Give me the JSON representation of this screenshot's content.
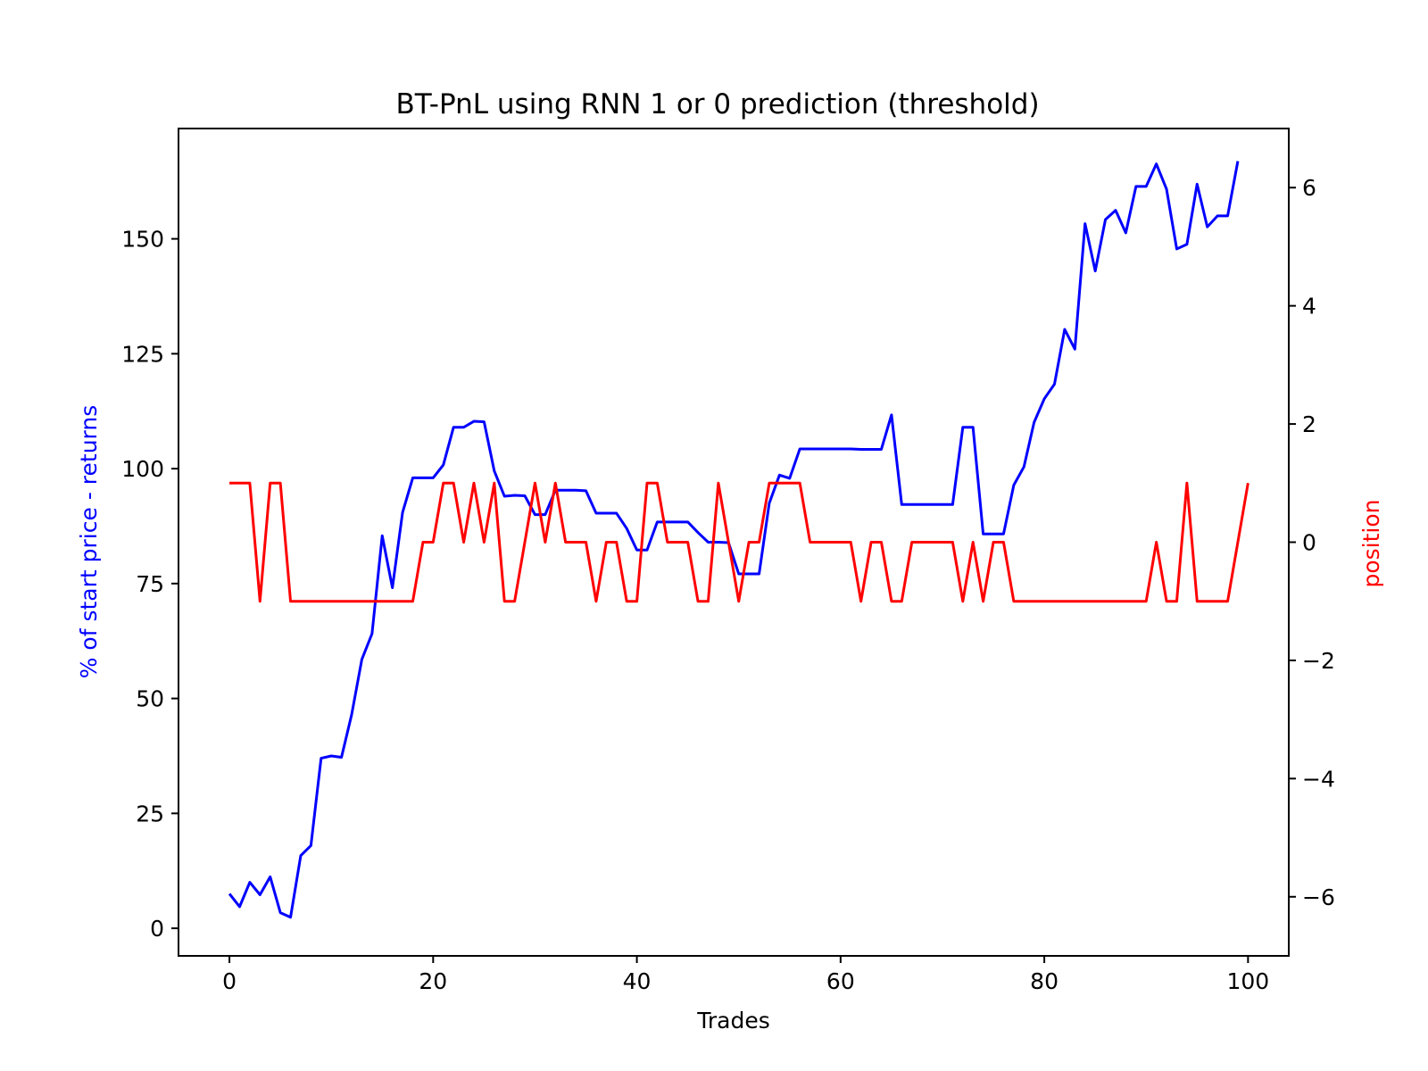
{
  "chart_data": {
    "type": "line",
    "title": "BT-PnL using RNN 1 or 0 prediction (threshold)",
    "xlabel": "Trades",
    "ylabel": "% of start price - returns",
    "y2label": "position",
    "xlim": [
      -5,
      104
    ],
    "ylim": [
      -6,
      174
    ],
    "y2lim": [
      -7,
      7
    ],
    "xticks": [
      0,
      20,
      40,
      60,
      80,
      100
    ],
    "yticks": [
      0,
      25,
      50,
      75,
      100,
      125,
      150
    ],
    "y2ticks": [
      -6,
      -4,
      -2,
      0,
      2,
      4,
      6
    ],
    "grid": false,
    "colors": {
      "primary": "#0000ff",
      "secondary": "#ff0000"
    },
    "series": [
      {
        "axis": "left",
        "color": "#0000ff",
        "values": [
          7.5,
          4.7,
          10,
          7.3,
          11.2,
          3.4,
          2.4,
          15.8,
          18,
          37,
          37.5,
          37.2,
          46.5,
          58.5,
          64.1,
          85.4,
          74.1,
          90.5,
          98,
          98,
          98,
          100.8,
          109,
          109,
          110.3,
          110.2,
          99.5,
          94,
          94.2,
          94.1,
          90,
          90,
          95.3,
          95.3,
          95.3,
          95.2,
          90.3,
          90.3,
          90.3,
          87,
          82.3,
          82.3,
          88.4,
          88.4,
          88.4,
          88.4,
          86.1,
          84,
          84,
          83.9,
          77.1,
          77.1,
          77.1,
          92.5,
          98.6,
          97.9,
          104.3,
          104.3,
          104.3,
          104.3,
          104.3,
          104.3,
          104.2,
          104.2,
          104.2,
          111.7,
          92.2,
          92.2,
          92.2,
          92.2,
          92.2,
          92.2,
          109,
          109,
          85.8,
          85.8,
          85.8,
          96.4,
          100.4,
          110.1,
          115.2,
          118.4,
          130.3,
          126,
          153.3,
          143,
          154.2,
          156.2,
          151.3,
          161.4,
          161.4,
          166.3,
          160.8,
          147.8,
          148.8,
          161.9,
          152.6,
          155,
          155,
          166.9
        ]
      },
      {
        "axis": "right",
        "color": "#ff0000",
        "values": [
          1,
          1,
          1,
          -1,
          1,
          1,
          -1,
          -1,
          -1,
          -1,
          -1,
          -1,
          -1,
          -1,
          -1,
          -1,
          -1,
          -1,
          -1,
          0,
          0,
          1,
          1,
          0,
          1,
          0,
          1,
          -1,
          -1,
          0,
          1,
          0,
          1,
          0,
          0,
          0,
          -1,
          0,
          0,
          -1,
          -1,
          1,
          1,
          0,
          0,
          0,
          -1,
          -1,
          1,
          0,
          -1,
          0,
          0,
          1,
          1,
          1,
          1,
          0,
          0,
          0,
          0,
          0,
          -1,
          0,
          0,
          -1,
          -1,
          0,
          0,
          0,
          0,
          0,
          -1,
          0,
          -1,
          0,
          0,
          -1,
          -1,
          -1,
          -1,
          -1,
          -1,
          -1,
          -1,
          -1,
          -1,
          -1,
          -1,
          -1,
          -1,
          0,
          -1,
          -1,
          1,
          -1,
          -1,
          -1,
          -1,
          0,
          1
        ]
      }
    ]
  }
}
